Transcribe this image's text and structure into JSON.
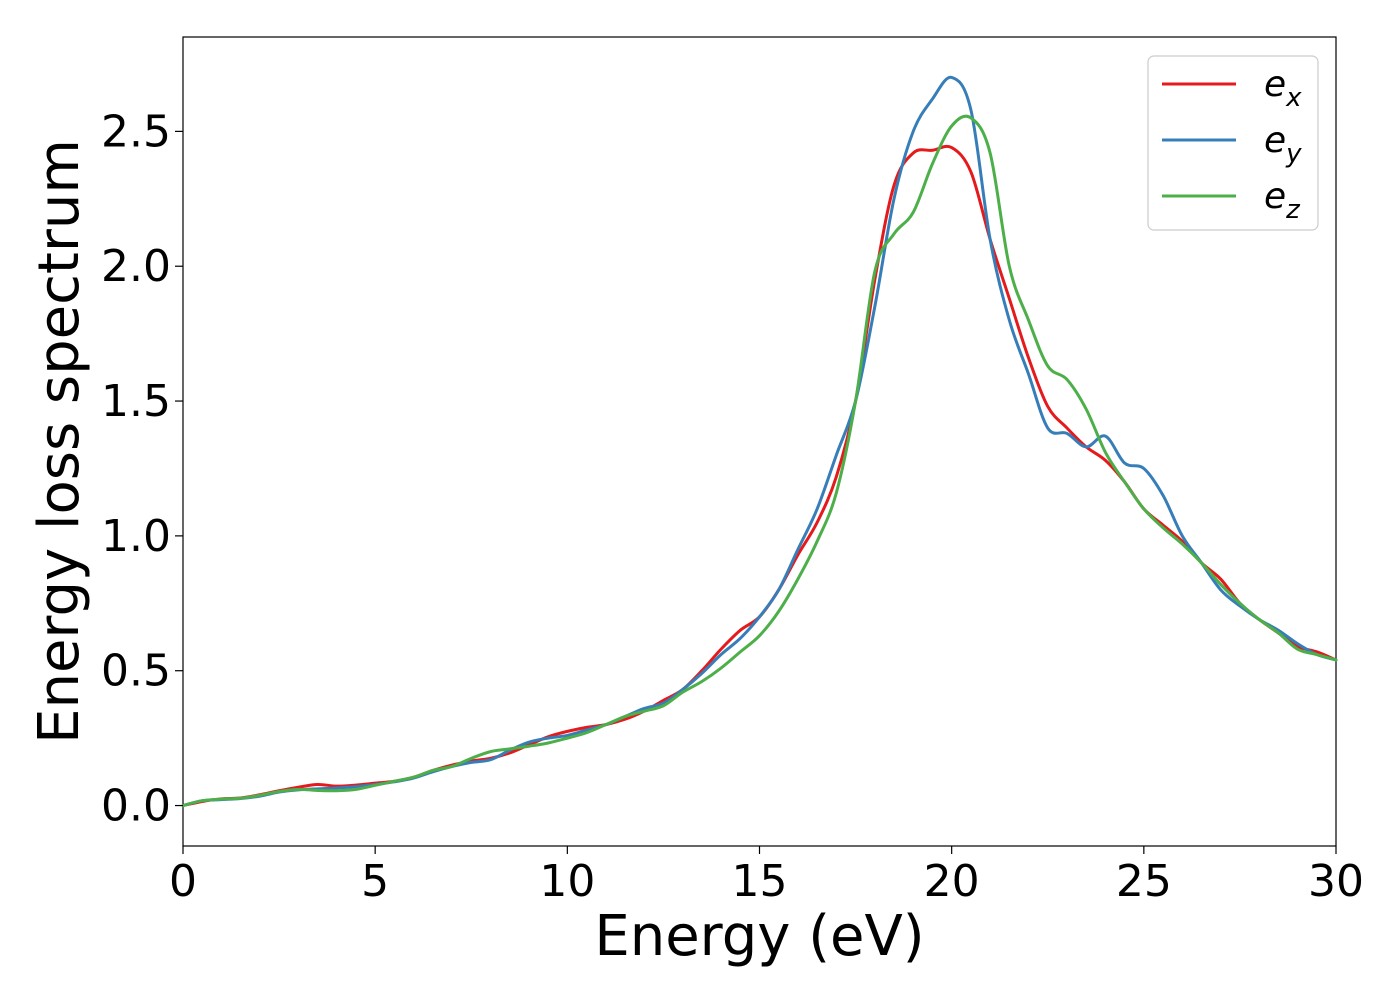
{
  "chart_data": {
    "type": "line",
    "title": "",
    "xlabel": "Energy (eV)",
    "ylabel": "Energy loss spectrum",
    "xlim": [
      0,
      30
    ],
    "ylim": [
      -0.15,
      2.85
    ],
    "xticks": [
      0,
      5,
      10,
      15,
      20,
      25,
      30
    ],
    "xtick_labels": [
      "0",
      "5",
      "10",
      "15",
      "20",
      "25",
      "30"
    ],
    "yticks": [
      0.0,
      0.5,
      1.0,
      1.5,
      2.0,
      2.5
    ],
    "ytick_labels": [
      "0.0",
      "0.5",
      "1.0",
      "1.5",
      "2.0",
      "2.5"
    ],
    "grid": false,
    "legend_position": "top-right",
    "series": [
      {
        "name": "e_x",
        "label_base": "e",
        "label_sub": "x",
        "color": "#e41a1c",
        "x": [
          0,
          0.5,
          1,
          1.5,
          2,
          2.5,
          3,
          3.5,
          4,
          4.5,
          5,
          5.5,
          6,
          6.5,
          7,
          7.5,
          8,
          8.5,
          9,
          9.5,
          10,
          10.5,
          11,
          11.5,
          12,
          12.5,
          13,
          13.5,
          14,
          14.5,
          15,
          15.5,
          16,
          16.5,
          17,
          17.5,
          18,
          18.5,
          19,
          19.5,
          20,
          20.5,
          21,
          21.5,
          22,
          22.5,
          23,
          23.5,
          24,
          24.5,
          25,
          25.5,
          26,
          26.5,
          27,
          27.5,
          28,
          28.5,
          29,
          29.5,
          30
        ],
        "y": [
          0.0,
          0.015,
          0.025,
          0.028,
          0.04,
          0.055,
          0.068,
          0.078,
          0.072,
          0.076,
          0.083,
          0.09,
          0.105,
          0.13,
          0.15,
          0.165,
          0.175,
          0.195,
          0.225,
          0.255,
          0.275,
          0.29,
          0.3,
          0.32,
          0.35,
          0.39,
          0.43,
          0.5,
          0.58,
          0.65,
          0.7,
          0.8,
          0.93,
          1.05,
          1.22,
          1.5,
          1.95,
          2.3,
          2.42,
          2.43,
          2.44,
          2.35,
          2.1,
          1.88,
          1.66,
          1.48,
          1.4,
          1.33,
          1.28,
          1.2,
          1.1,
          1.04,
          0.98,
          0.9,
          0.84,
          0.75,
          0.69,
          0.64,
          0.59,
          0.57,
          0.54
        ]
      },
      {
        "name": "e_y",
        "label_base": "e",
        "label_sub": "y",
        "color": "#377eb8",
        "x": [
          0,
          0.5,
          1,
          1.5,
          2,
          2.5,
          3,
          3.5,
          4,
          4.5,
          5,
          5.5,
          6,
          6.5,
          7,
          7.5,
          8,
          8.5,
          9,
          9.5,
          10,
          10.5,
          11,
          11.5,
          12,
          12.5,
          13,
          13.5,
          14,
          14.5,
          15,
          15.5,
          16,
          16.5,
          17,
          17.5,
          18,
          18.5,
          19,
          19.5,
          20,
          20.5,
          21,
          21.5,
          22,
          22.5,
          23,
          23.5,
          24,
          24.5,
          25,
          25.5,
          26,
          26.5,
          27,
          27.5,
          28,
          28.5,
          29,
          29.5,
          30
        ],
        "y": [
          0.0,
          0.018,
          0.022,
          0.026,
          0.035,
          0.05,
          0.058,
          0.062,
          0.065,
          0.07,
          0.078,
          0.088,
          0.102,
          0.125,
          0.145,
          0.16,
          0.17,
          0.205,
          0.235,
          0.25,
          0.26,
          0.28,
          0.3,
          0.33,
          0.36,
          0.38,
          0.43,
          0.49,
          0.56,
          0.62,
          0.7,
          0.8,
          0.95,
          1.1,
          1.3,
          1.5,
          1.85,
          2.25,
          2.5,
          2.62,
          2.7,
          2.58,
          2.1,
          1.8,
          1.6,
          1.4,
          1.38,
          1.33,
          1.37,
          1.27,
          1.25,
          1.15,
          1.0,
          0.9,
          0.8,
          0.74,
          0.69,
          0.65,
          0.6,
          0.56,
          0.54
        ]
      },
      {
        "name": "e_z",
        "label_base": "e",
        "label_sub": "z",
        "color": "#4daf4a",
        "x": [
          0,
          0.5,
          1,
          1.5,
          2,
          2.5,
          3,
          3.5,
          4,
          4.5,
          5,
          5.5,
          6,
          6.5,
          7,
          7.5,
          8,
          8.5,
          9,
          9.5,
          10,
          10.5,
          11,
          11.5,
          12,
          12.5,
          13,
          13.5,
          14,
          14.5,
          15,
          15.5,
          16,
          16.5,
          17,
          17.5,
          18,
          18.5,
          19,
          19.5,
          20,
          20.5,
          21,
          21.5,
          22,
          22.5,
          23,
          23.5,
          24,
          24.5,
          25,
          25.5,
          26,
          26.5,
          27,
          27.5,
          28,
          28.5,
          29,
          29.5,
          30
        ],
        "y": [
          0.0,
          0.018,
          0.024,
          0.027,
          0.038,
          0.052,
          0.06,
          0.056,
          0.055,
          0.06,
          0.075,
          0.09,
          0.105,
          0.13,
          0.145,
          0.175,
          0.2,
          0.21,
          0.22,
          0.232,
          0.25,
          0.27,
          0.3,
          0.33,
          0.35,
          0.37,
          0.42,
          0.46,
          0.51,
          0.57,
          0.63,
          0.72,
          0.84,
          0.98,
          1.16,
          1.5,
          1.98,
          2.12,
          2.2,
          2.38,
          2.52,
          2.55,
          2.42,
          2.0,
          1.8,
          1.63,
          1.58,
          1.47,
          1.31,
          1.2,
          1.1,
          1.03,
          0.97,
          0.9,
          0.82,
          0.75,
          0.69,
          0.64,
          0.58,
          0.56,
          0.54
        ]
      }
    ]
  }
}
